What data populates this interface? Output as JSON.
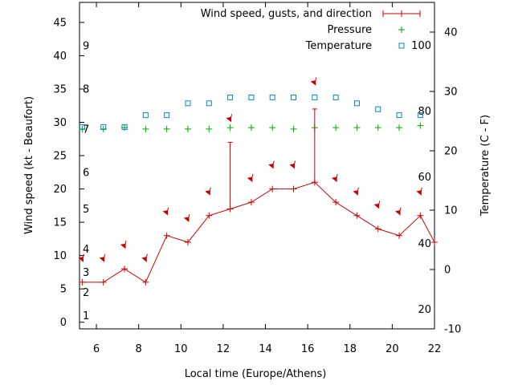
{
  "chart_data": {
    "type": "line",
    "xlabel": "Local time (Europe/Athens)",
    "ylabel": "Wind speed (kt - Beaufort)",
    "y2label": "Temperature (C - F)",
    "xlim": [
      5.2,
      22
    ],
    "ylim": [
      -1,
      48
    ],
    "y2lim": [
      -10,
      45
    ],
    "x_ticks": [
      6,
      8,
      10,
      12,
      14,
      16,
      18,
      20,
      22
    ],
    "y_ticks": [
      0,
      5,
      10,
      15,
      20,
      25,
      30,
      35,
      40,
      45
    ],
    "y2_ticks": [
      -10,
      0,
      10,
      20,
      30,
      40
    ],
    "beaufort_labels": [
      {
        "label": "1",
        "kt": 1
      },
      {
        "label": "2",
        "kt": 4.5
      },
      {
        "label": "3",
        "kt": 7.5
      },
      {
        "label": "4",
        "kt": 11
      },
      {
        "label": "5",
        "kt": 17
      },
      {
        "label": "6",
        "kt": 22.5
      },
      {
        "label": "7",
        "kt": 29
      },
      {
        "label": "8",
        "kt": 35
      },
      {
        "label": "9",
        "kt": 41.5
      }
    ],
    "fahrenheit_labels": [
      {
        "label": "20",
        "celsius": -6.7
      },
      {
        "label": "40",
        "celsius": 4.4
      },
      {
        "label": "60",
        "celsius": 15.6
      },
      {
        "label": "80",
        "celsius": 26.7
      },
      {
        "label": "100",
        "celsius": 37.8
      }
    ],
    "legend": [
      {
        "label": "Wind speed, gusts, and direction",
        "color": "#cc0000"
      },
      {
        "label": "Pressure",
        "color": "#00aa00"
      },
      {
        "label": "Temperature",
        "color": "#0088cc"
      }
    ],
    "series": [
      {
        "name": "Wind speed",
        "x": [
          5.33,
          6.33,
          7.33,
          8.33,
          9.33,
          10.33,
          11.33,
          12.33,
          13.33,
          14.33,
          15.33,
          16.33,
          17.33,
          18.33,
          19.33,
          20.33,
          21.33,
          22
        ],
        "values": [
          6,
          6,
          8,
          6,
          13,
          12,
          16,
          17,
          18,
          20,
          20,
          21,
          18,
          16,
          14,
          13,
          16,
          12
        ]
      },
      {
        "name": "Gusts",
        "x": [
          12.33,
          16.33
        ],
        "values": [
          27,
          32
        ]
      },
      {
        "name": "Direction",
        "x": [
          5.33,
          6.33,
          7.33,
          8.33,
          9.33,
          10.33,
          11.33,
          12.33,
          13.33,
          14.33,
          15.33,
          16.33,
          17.33,
          18.33,
          19.33,
          20.33,
          21.33
        ],
        "values": [
          9.5,
          9.5,
          11.5,
          9.5,
          16.5,
          15.5,
          19.5,
          30.5,
          21.5,
          23.5,
          23.5,
          36,
          21.5,
          19.5,
          17.5,
          16.5,
          19.5
        ]
      },
      {
        "name": "Pressure",
        "x": [
          5.33,
          6.33,
          7.33,
          8.33,
          9.33,
          10.33,
          11.33,
          12.33,
          13.33,
          14.33,
          15.33,
          16.33,
          17.33,
          18.33,
          19.33,
          20.33,
          21.33
        ],
        "values": [
          29,
          29,
          29.2,
          29,
          29,
          29,
          29,
          29.2,
          29.2,
          29.2,
          29,
          29.2,
          29.2,
          29.2,
          29.2,
          29.2,
          29.5
        ]
      },
      {
        "name": "Temperature",
        "x": [
          5.33,
          6.33,
          7.33,
          8.33,
          9.33,
          10.33,
          11.33,
          12.33,
          13.33,
          14.33,
          15.33,
          16.33,
          17.33,
          18.33,
          19.33,
          20.33,
          21.33
        ],
        "values_celsius": [
          24,
          24,
          24,
          26,
          26,
          28,
          28,
          29,
          29,
          29,
          29,
          29,
          29,
          28,
          27,
          26,
          26
        ]
      }
    ]
  }
}
